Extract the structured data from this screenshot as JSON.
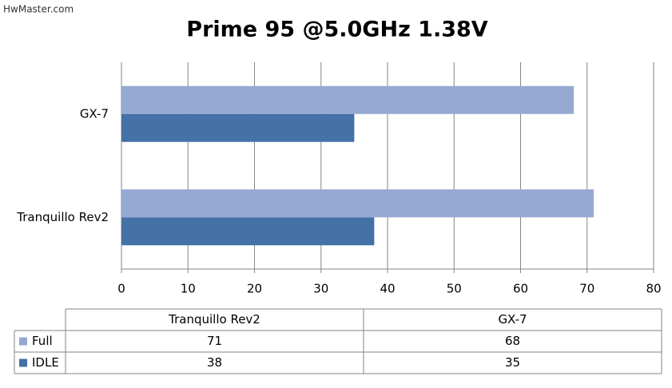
{
  "watermark": "HwMaster.com",
  "chart_data": {
    "type": "bar",
    "orientation": "horizontal",
    "title": "Prime 95 @5.0GHz 1.38V",
    "categories": [
      "Tranquillo Rev2",
      "GX-7"
    ],
    "series": [
      {
        "name": "Full",
        "color": "#95a9d3",
        "values": [
          71,
          68
        ]
      },
      {
        "name": "IDLE",
        "color": "#4471a6",
        "values": [
          38,
          35
        ]
      }
    ],
    "xlim": [
      0,
      80
    ],
    "xticks": [
      0,
      10,
      20,
      30,
      40,
      50,
      60,
      70,
      80
    ],
    "grid": true,
    "data_table": true
  }
}
